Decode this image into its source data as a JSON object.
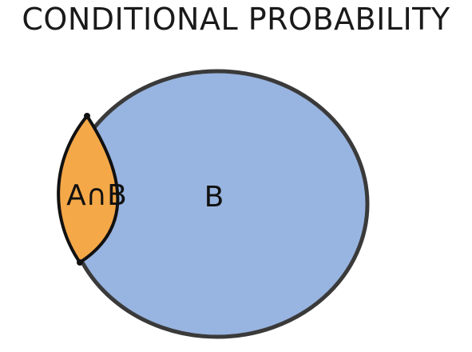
{
  "title": "CONDITIONAL PROBABILITY",
  "diagram": {
    "set_b_label": "B",
    "intersection_label": "A∩B",
    "colors": {
      "set_b_fill": "#98b4e0",
      "intersection_fill": "#f5a848",
      "outline": "#3a3a3a",
      "intersection_outline": "#111111"
    }
  }
}
